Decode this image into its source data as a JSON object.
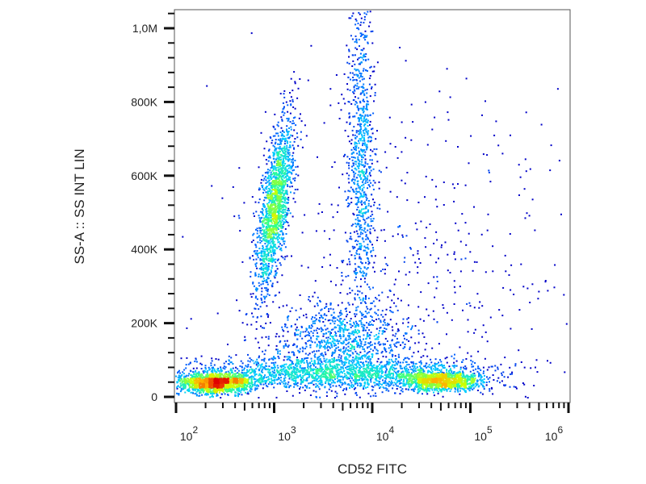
{
  "chart_data": {
    "type": "scatter",
    "subtype": "flow-cytometry density dot plot",
    "xlabel": "CD52 FITC",
    "ylabel": "SS-A :: SS INT LIN",
    "x_scale": "log",
    "xlim": [
      100,
      1000000
    ],
    "ylim": [
      0,
      1050000
    ],
    "x_ticks": [
      {
        "value": 100,
        "base": "10",
        "exp": "2"
      },
      {
        "value": 1000,
        "base": "10",
        "exp": "3"
      },
      {
        "value": 10000,
        "base": "10",
        "exp": "4"
      },
      {
        "value": 100000,
        "base": "10",
        "exp": "5"
      },
      {
        "value": 1000000,
        "base": "10",
        "exp": "6"
      }
    ],
    "y_ticks": [
      {
        "value": 0,
        "label": "0"
      },
      {
        "value": 200000,
        "label": "200K"
      },
      {
        "value": 400000,
        "label": "400K"
      },
      {
        "value": 600000,
        "label": "600K"
      },
      {
        "value": 800000,
        "label": "800K"
      },
      {
        "value": 1000000,
        "label": "1,0M"
      }
    ],
    "grid": false,
    "color_scale": [
      "#0000c8",
      "#0060ff",
      "#00d0ff",
      "#30ff90",
      "#d0ff00",
      "#ffb000",
      "#e00000"
    ],
    "populations": [
      {
        "x_center": 250,
        "x_spread_decades": 0.2,
        "y_center": 40000,
        "y_spread": 14000,
        "events": 1500
      },
      {
        "x_center": 1000,
        "x_spread_decades": 0.07,
        "y_center": 520000,
        "y_spread": 120000,
        "slope_decades_per_100K": 0.05,
        "events": 1700
      },
      {
        "x_center": 7500,
        "x_spread_decades": 0.07,
        "y_center": 650000,
        "y_spread": 220000,
        "events": 900
      },
      {
        "x_center": 4000,
        "x_spread_decades": 0.8,
        "y_center": 65000,
        "y_spread": 22000,
        "events": 1800
      },
      {
        "x_center": 50000,
        "x_spread_decades": 0.22,
        "y_center": 45000,
        "y_spread": 13000,
        "events": 1100
      },
      {
        "x_center": 5000,
        "x_spread_decades": 0.35,
        "y_center": 160000,
        "y_spread": 55000,
        "events": 900
      },
      {
        "x_center": 20000,
        "x_spread_decades": 0.9,
        "y_center": 350000,
        "y_spread": 250000,
        "events": 500
      }
    ]
  }
}
